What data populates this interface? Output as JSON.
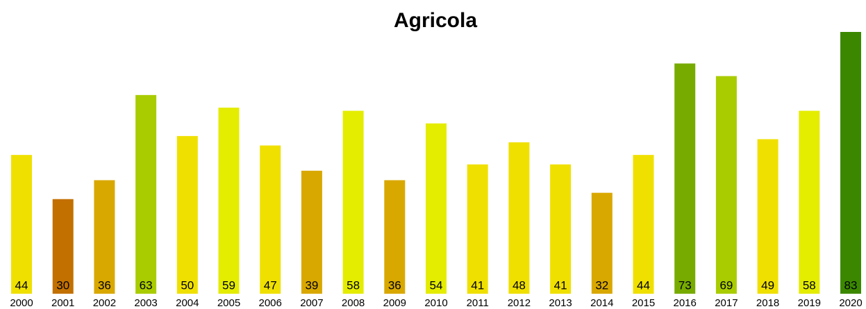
{
  "chart_data": {
    "type": "bar",
    "title": "Agricola",
    "categories": [
      "2000",
      "2001",
      "2002",
      "2003",
      "2004",
      "2005",
      "2006",
      "2007",
      "2008",
      "2009",
      "2010",
      "2011",
      "2012",
      "2013",
      "2014",
      "2015",
      "2016",
      "2017",
      "2018",
      "2019",
      "2020"
    ],
    "values": [
      44,
      30,
      36,
      63,
      50,
      59,
      47,
      39,
      58,
      36,
      54,
      41,
      48,
      41,
      32,
      44,
      73,
      69,
      49,
      58,
      83
    ],
    "colors": [
      "#f0e000",
      "#c27000",
      "#d9a800",
      "#a9cc00",
      "#f0e000",
      "#e4ec00",
      "#f0e000",
      "#d9a800",
      "#e4ec00",
      "#d9a800",
      "#e4ec00",
      "#f0e000",
      "#f0e000",
      "#f0e000",
      "#d9a800",
      "#f0e000",
      "#77ab00",
      "#a9cc00",
      "#f0e000",
      "#e4ec00",
      "#3b8800"
    ],
    "ylim": [
      0,
      83
    ]
  }
}
